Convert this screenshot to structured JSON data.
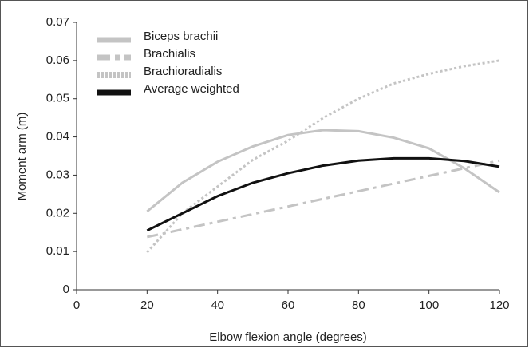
{
  "chart_data": {
    "type": "line",
    "xlabel": "Elbow flexion angle (degrees)",
    "ylabel": "Moment arm (m)",
    "x": [
      20,
      30,
      40,
      50,
      60,
      70,
      80,
      90,
      100,
      110,
      120
    ],
    "series": [
      {
        "name": "Biceps brachii",
        "color": "#c4c4c4",
        "dash": "solid",
        "values": [
          0.0205,
          0.028,
          0.0335,
          0.0375,
          0.0405,
          0.0418,
          0.0415,
          0.0398,
          0.037,
          0.0318,
          0.0255
        ]
      },
      {
        "name": "Brachialis",
        "color": "#c4c4c4",
        "dash": "dashdot",
        "values": [
          0.0138,
          0.0158,
          0.0178,
          0.0198,
          0.0218,
          0.0238,
          0.0258,
          0.0278,
          0.0298,
          0.0318,
          0.0338
        ]
      },
      {
        "name": "Brachioradialis",
        "color": "#c4c4c4",
        "dash": "dotted",
        "values": [
          0.0098,
          0.02,
          0.027,
          0.034,
          0.039,
          0.045,
          0.05,
          0.054,
          0.0565,
          0.0585,
          0.06
        ]
      },
      {
        "name": "Average weighted",
        "color": "#111111",
        "dash": "solid",
        "values": [
          0.0155,
          0.02,
          0.0245,
          0.028,
          0.0305,
          0.0325,
          0.0338,
          0.0344,
          0.0344,
          0.0337,
          0.0322
        ]
      }
    ],
    "xlim": [
      0,
      120
    ],
    "xticks": [
      0,
      20,
      40,
      60,
      80,
      100,
      120
    ],
    "ylim": [
      0,
      0.07
    ],
    "yticks": [
      0,
      0.01,
      0.02,
      0.03,
      0.04,
      0.05,
      0.06,
      0.07
    ],
    "legend": "top-left"
  }
}
